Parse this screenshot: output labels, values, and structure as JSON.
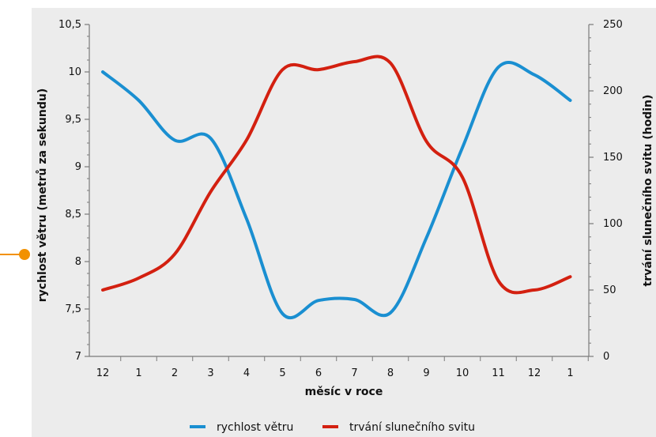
{
  "chart_data": {
    "type": "line",
    "xlabel": "měsíc v roce",
    "categories": [
      "12",
      "1",
      "2",
      "3",
      "4",
      "5",
      "6",
      "7",
      "8",
      "9",
      "10",
      "11",
      "12",
      "1"
    ],
    "y_left": {
      "label": "rychlost větru (metrů za sekundu)",
      "ylim": [
        7,
        10.5
      ],
      "ticks": [
        "7",
        "7,5",
        "8",
        "8,5",
        "9",
        "9,5",
        "10",
        "10,5"
      ]
    },
    "y_right": {
      "label": "trvání slunečního svitu (hodin)",
      "ylim": [
        0,
        250
      ],
      "ticks": [
        "0",
        "50",
        "100",
        "150",
        "200",
        "250"
      ]
    },
    "series": [
      {
        "name": "rychlost větru",
        "axis": "left",
        "color": "#1a8fd1",
        "values": [
          10.0,
          9.7,
          9.28,
          9.3,
          8.45,
          7.45,
          7.59,
          7.6,
          7.46,
          8.25,
          9.2,
          10.05,
          9.97,
          9.7
        ]
      },
      {
        "name": "trvání slunečního svitu",
        "axis": "right",
        "color": "#d32010",
        "values": [
          50,
          59,
          77,
          124,
          163,
          216,
          216,
          222,
          221,
          162,
          135,
          57,
          50,
          60
        ]
      }
    ],
    "legend": "bottom-center",
    "grid": false,
    "annotation_marker_color": "#f29100"
  }
}
